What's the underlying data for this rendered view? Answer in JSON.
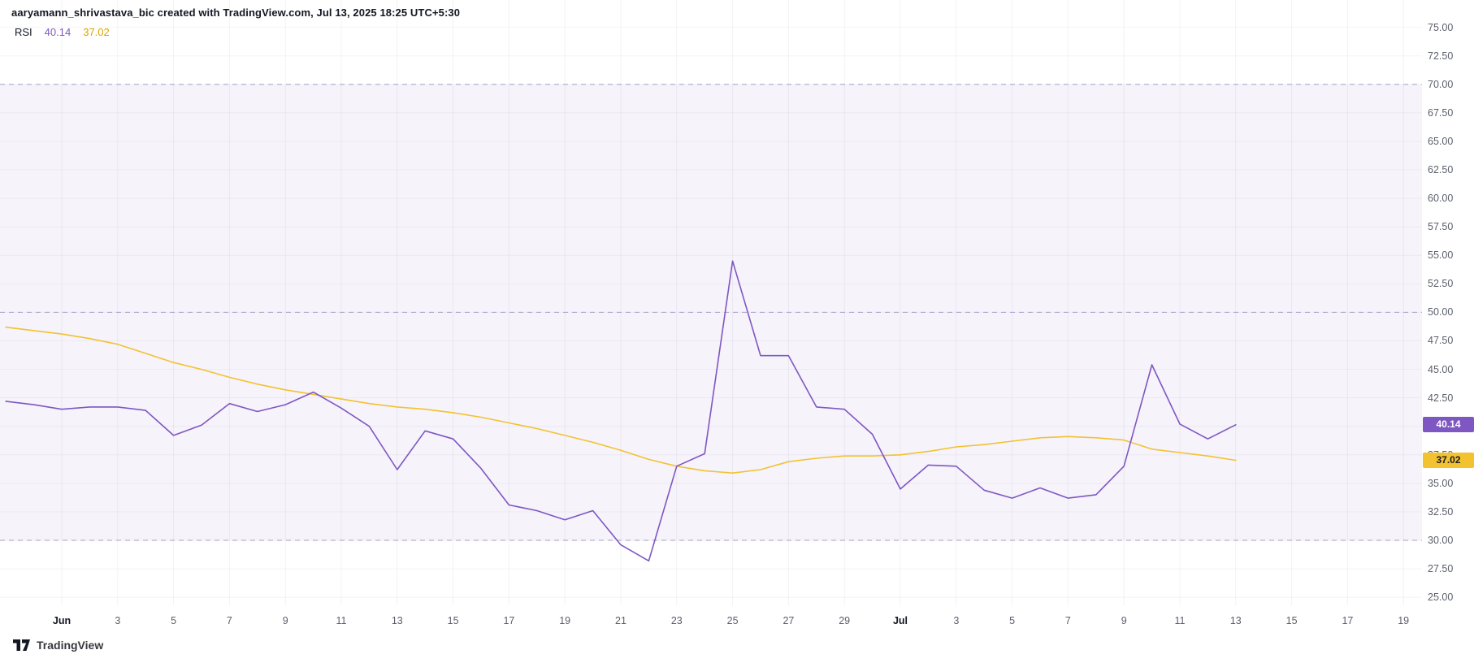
{
  "header": {
    "title": "aaryamann_shrivastava_bic created with TradingView.com, Jul 13, 2025 18:25 UTC+5:30"
  },
  "legend": {
    "indicator": "RSI",
    "rsi_value": "40.14",
    "ma_value": "37.02"
  },
  "axis_badges": {
    "rsi": "40.14",
    "ma": "37.02"
  },
  "footer": {
    "brand": "TradingView"
  },
  "colors": {
    "rsi_line": "#7E57C2",
    "ma_line": "#F2C230",
    "rsi_value_text": "#7E57C2",
    "ma_value_text": "#D9A400",
    "band_fill": "#7E57C2",
    "band_opacity": "0.07",
    "dashed_line": "#A79ECD",
    "grid_line": "#2A2E39",
    "axis_text": "#5B5F6B",
    "rsi_badge_bg": "#7E57C2",
    "rsi_badge_text": "#FFFFFF",
    "ma_badge_bg": "#F2C230",
    "ma_badge_text": "#1D1D22",
    "title_text": "#131722"
  },
  "chart_data": {
    "type": "line",
    "ylim": [
      24.3,
      77.4
    ],
    "grid": true,
    "overbought_level": 70,
    "midline_level": 50,
    "oversold_level": 30,
    "y_tick_labels": [
      "75.00",
      "72.50",
      "70.00",
      "67.50",
      "65.00",
      "62.50",
      "60.00",
      "57.50",
      "55.00",
      "52.50",
      "50.00",
      "47.50",
      "45.00",
      "42.50",
      "40.00",
      "37.50",
      "35.00",
      "32.50",
      "30.00",
      "27.50",
      "25.00"
    ],
    "x_ticks": [
      {
        "label": "Jun",
        "day": 0,
        "month": true
      },
      {
        "label": "3",
        "day": 2
      },
      {
        "label": "5",
        "day": 4
      },
      {
        "label": "7",
        "day": 6
      },
      {
        "label": "9",
        "day": 8
      },
      {
        "label": "11",
        "day": 10
      },
      {
        "label": "13",
        "day": 12
      },
      {
        "label": "15",
        "day": 14
      },
      {
        "label": "17",
        "day": 16
      },
      {
        "label": "19",
        "day": 18
      },
      {
        "label": "21",
        "day": 20
      },
      {
        "label": "23",
        "day": 22
      },
      {
        "label": "25",
        "day": 24
      },
      {
        "label": "27",
        "day": 26
      },
      {
        "label": "29",
        "day": 28
      },
      {
        "label": "Jul",
        "day": 30,
        "month": true
      },
      {
        "label": "3",
        "day": 32
      },
      {
        "label": "5",
        "day": 34
      },
      {
        "label": "7",
        "day": 36
      },
      {
        "label": "9",
        "day": 38
      },
      {
        "label": "11",
        "day": 40
      },
      {
        "label": "13",
        "day": 42
      },
      {
        "label": "15",
        "day": 44
      },
      {
        "label": "17",
        "day": 46
      },
      {
        "label": "19",
        "day": 48
      }
    ],
    "series": [
      {
        "name": "RSI",
        "color_key": "rsi_line",
        "last_value": 40.14,
        "points": [
          [
            -2,
            42.2
          ],
          [
            -1,
            41.9
          ],
          [
            0,
            41.5
          ],
          [
            1,
            41.7
          ],
          [
            2,
            41.7
          ],
          [
            3,
            41.4
          ],
          [
            4,
            39.2
          ],
          [
            5,
            40.1
          ],
          [
            6,
            42.0
          ],
          [
            7,
            41.3
          ],
          [
            8,
            41.9
          ],
          [
            9,
            43.0
          ],
          [
            10,
            41.6
          ],
          [
            11,
            40.0
          ],
          [
            12,
            36.2
          ],
          [
            13,
            39.6
          ],
          [
            14,
            38.9
          ],
          [
            15,
            36.3
          ],
          [
            16,
            33.1
          ],
          [
            17,
            32.6
          ],
          [
            18,
            31.8
          ],
          [
            19,
            32.6
          ],
          [
            20,
            29.6
          ],
          [
            21,
            28.2
          ],
          [
            22,
            36.5
          ],
          [
            23,
            37.6
          ],
          [
            24,
            54.5
          ],
          [
            25,
            46.2
          ],
          [
            26,
            46.2
          ],
          [
            27,
            41.7
          ],
          [
            28,
            41.5
          ],
          [
            29,
            39.3
          ],
          [
            30,
            34.5
          ],
          [
            31,
            36.6
          ],
          [
            32,
            36.5
          ],
          [
            33,
            34.4
          ],
          [
            34,
            33.7
          ],
          [
            35,
            34.6
          ],
          [
            36,
            33.7
          ],
          [
            37,
            34.0
          ],
          [
            38,
            36.5
          ],
          [
            39,
            45.4
          ],
          [
            40,
            40.2
          ],
          [
            41,
            38.9
          ],
          [
            42,
            40.14
          ]
        ]
      },
      {
        "name": "RSI-based MA",
        "color_key": "ma_line",
        "last_value": 37.02,
        "points": [
          [
            -2,
            48.7
          ],
          [
            -1,
            48.4
          ],
          [
            0,
            48.1
          ],
          [
            1,
            47.7
          ],
          [
            2,
            47.2
          ],
          [
            3,
            46.4
          ],
          [
            4,
            45.6
          ],
          [
            5,
            45.0
          ],
          [
            6,
            44.3
          ],
          [
            7,
            43.7
          ],
          [
            8,
            43.2
          ],
          [
            9,
            42.8
          ],
          [
            10,
            42.4
          ],
          [
            11,
            42.0
          ],
          [
            12,
            41.7
          ],
          [
            13,
            41.5
          ],
          [
            14,
            41.2
          ],
          [
            15,
            40.8
          ],
          [
            16,
            40.3
          ],
          [
            17,
            39.8
          ],
          [
            18,
            39.2
          ],
          [
            19,
            38.6
          ],
          [
            20,
            37.9
          ],
          [
            21,
            37.1
          ],
          [
            22,
            36.5
          ],
          [
            23,
            36.1
          ],
          [
            24,
            35.9
          ],
          [
            25,
            36.2
          ],
          [
            26,
            36.9
          ],
          [
            27,
            37.2
          ],
          [
            28,
            37.4
          ],
          [
            29,
            37.4
          ],
          [
            30,
            37.5
          ],
          [
            31,
            37.8
          ],
          [
            32,
            38.2
          ],
          [
            33,
            38.4
          ],
          [
            34,
            38.7
          ],
          [
            35,
            39.0
          ],
          [
            36,
            39.1
          ],
          [
            37,
            39.0
          ],
          [
            38,
            38.8
          ],
          [
            39,
            38.0
          ],
          [
            40,
            37.7
          ],
          [
            41,
            37.4
          ],
          [
            42,
            37.02
          ]
        ]
      }
    ]
  }
}
